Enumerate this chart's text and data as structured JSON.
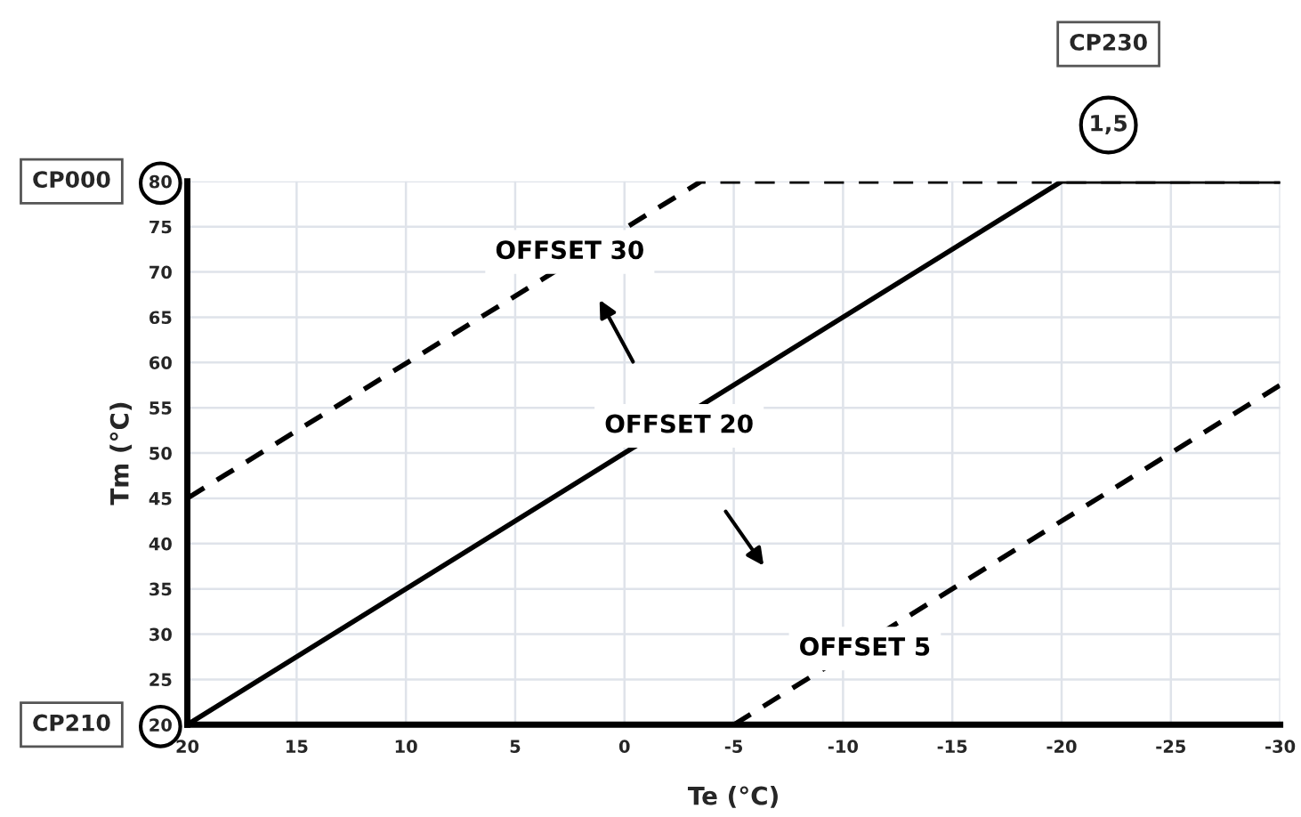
{
  "chart_data": {
    "type": "line",
    "xlabel": "Te (°C)",
    "ylabel": "Tm (°C)",
    "series": [
      {
        "name": "OFFSET 30",
        "color": "#000000",
        "line_style": "dashed",
        "x": [
          20,
          -3.5,
          -30
        ],
        "values": [
          45,
          80,
          80
        ]
      },
      {
        "name": "OFFSET 20",
        "color": "#000000",
        "line_style": "solid",
        "x": [
          20,
          -20,
          -30
        ],
        "values": [
          20,
          80,
          80
        ]
      },
      {
        "name": "OFFSET 5",
        "color": "#000000",
        "line_style": "dashed",
        "x": [
          -5,
          -30
        ],
        "values": [
          20,
          57.5
        ]
      }
    ],
    "xlim": [
      20,
      -30
    ],
    "ylim": [
      20,
      80
    ],
    "xticks": [
      20,
      15,
      10,
      5,
      0,
      -5,
      -10,
      -15,
      -20,
      -25,
      -30
    ],
    "yticks": [
      20,
      25,
      30,
      35,
      40,
      45,
      50,
      55,
      60,
      65,
      70,
      75,
      80
    ],
    "annotations": [
      "CP000",
      "CP210",
      "1,5",
      "CP230"
    ],
    "grid": true,
    "marker": "none"
  }
}
